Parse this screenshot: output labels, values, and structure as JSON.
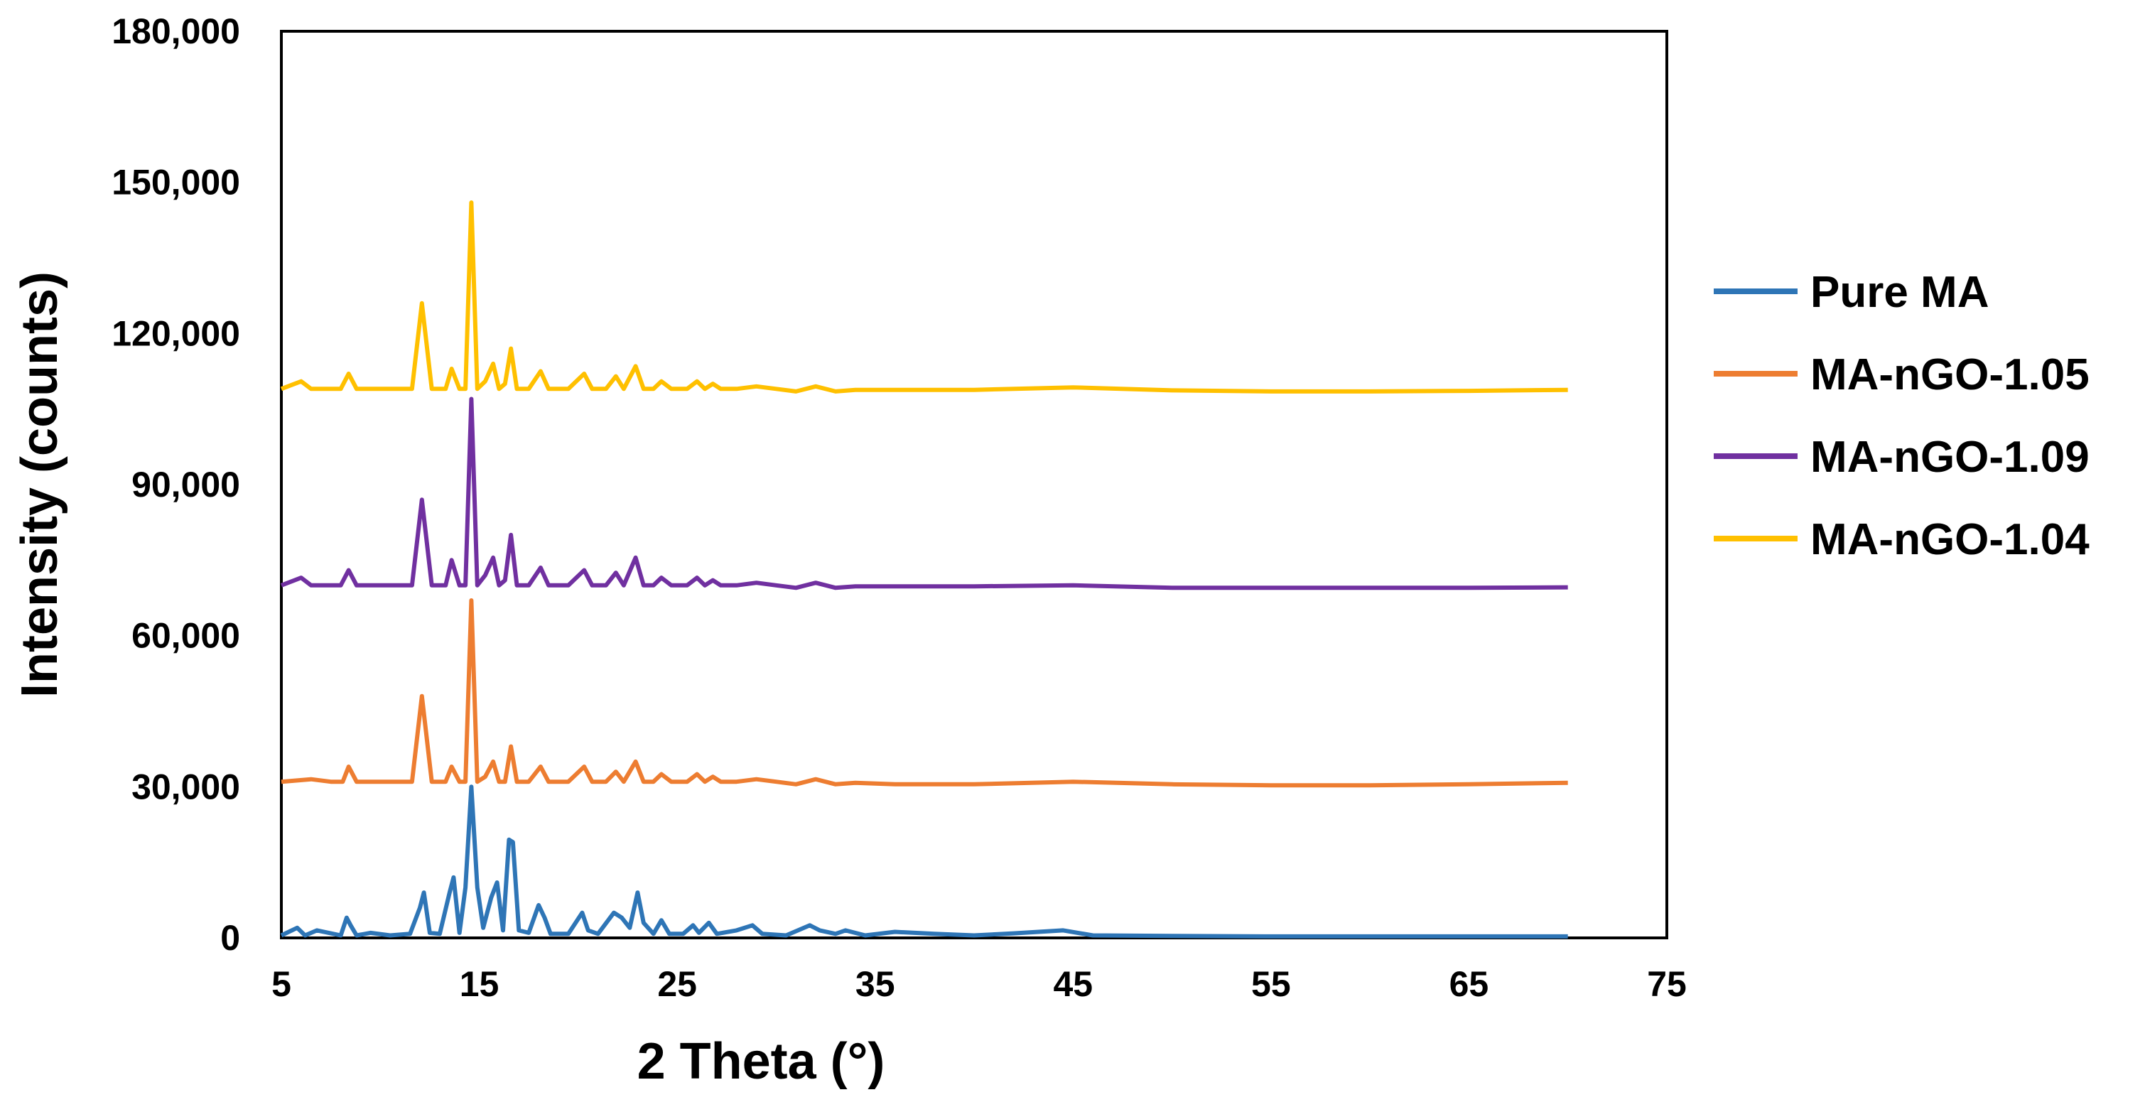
{
  "chart_data": {
    "type": "line",
    "title": "",
    "xlabel": "2 Theta (°)",
    "ylabel": "Intensity (counts)",
    "xlim": [
      5,
      75
    ],
    "ylim": [
      0,
      180000
    ],
    "x_ticks": [
      "5",
      "15",
      "25",
      "35",
      "45",
      "55",
      "65",
      "75"
    ],
    "y_ticks": [
      "0",
      "30,000",
      "60,000",
      "90,000",
      "120,000",
      "150,000",
      "180,000"
    ],
    "grid": false,
    "legend_position": "right",
    "series": [
      {
        "name": "Pure MA",
        "color": "#2E75B6",
        "x": [
          5,
          5.8,
          6.2,
          6.8,
          8.0,
          8.3,
          8.5,
          8.8,
          9.5,
          10.5,
          11.5,
          12.0,
          12.2,
          12.5,
          13.0,
          13.5,
          13.7,
          14.0,
          14.3,
          14.6,
          14.9,
          15.2,
          15.6,
          15.9,
          16.2,
          16.5,
          16.7,
          17.0,
          17.5,
          18.0,
          18.3,
          18.6,
          19.5,
          20.2,
          20.5,
          21.0,
          21.8,
          22.2,
          22.6,
          23.0,
          23.3,
          23.8,
          24.2,
          24.6,
          25.3,
          25.8,
          26.1,
          26.6,
          27.0,
          28.0,
          28.8,
          29.3,
          30.5,
          31.7,
          32.2,
          33.0,
          33.5,
          34.5,
          36.0,
          38.0,
          40.0,
          42.0,
          44.5,
          46.0,
          50.0,
          55.0,
          60.0,
          65.0,
          70.0
        ],
        "values": [
          500,
          2000,
          500,
          1500,
          500,
          4000,
          2500,
          500,
          1000,
          500,
          800,
          6000,
          9000,
          1000,
          800,
          9000,
          12000,
          1000,
          10000,
          30000,
          10000,
          2000,
          8000,
          11000,
          1500,
          19500,
          19000,
          1500,
          1000,
          6500,
          4000,
          800,
          800,
          5000,
          1500,
          800,
          5000,
          4000,
          2000,
          9000,
          3000,
          800,
          3500,
          800,
          800,
          2500,
          1000,
          3000,
          800,
          1500,
          2500,
          800,
          500,
          2500,
          1500,
          800,
          1500,
          500,
          1200,
          800,
          500,
          900,
          1500,
          500,
          400,
          300,
          300,
          300,
          300
        ]
      },
      {
        "name": "MA-nGO-1.05",
        "color": "#ED7D31",
        "x": [
          5,
          6.5,
          7.5,
          8.1,
          8.4,
          8.8,
          10.0,
          11.6,
          12.1,
          12.6,
          13.3,
          13.6,
          14.0,
          14.3,
          14.6,
          14.9,
          15.3,
          15.7,
          16.0,
          16.3,
          16.6,
          16.9,
          17.5,
          18.1,
          18.5,
          19.5,
          20.3,
          20.7,
          21.4,
          21.9,
          22.3,
          22.9,
          23.3,
          23.8,
          24.2,
          24.7,
          25.5,
          26.0,
          26.4,
          26.8,
          27.2,
          28.0,
          29.0,
          30.0,
          31.0,
          32.0,
          33.0,
          34.0,
          36.0,
          40.0,
          45.0,
          50.0,
          55.0,
          60.0,
          65.0,
          70.0
        ],
        "values": [
          31000,
          31500,
          31000,
          31000,
          34000,
          31000,
          31000,
          31000,
          48000,
          31000,
          31000,
          34000,
          31000,
          31000,
          67000,
          31000,
          32000,
          35000,
          31000,
          31000,
          38000,
          31000,
          31000,
          34000,
          31000,
          31000,
          34000,
          31000,
          31000,
          33000,
          31000,
          35000,
          31000,
          31000,
          32500,
          31000,
          31000,
          32500,
          31000,
          32000,
          31000,
          31000,
          31500,
          31000,
          30500,
          31500,
          30500,
          30800,
          30500,
          30500,
          31000,
          30500,
          30300,
          30300,
          30500,
          30800
        ]
      },
      {
        "name": "MA-nGO-1.09",
        "color": "#7030A0",
        "x": [
          5,
          6.0,
          6.5,
          8.0,
          8.4,
          8.8,
          10.0,
          11.6,
          12.1,
          12.6,
          13.3,
          13.6,
          14.0,
          14.3,
          14.6,
          14.9,
          15.3,
          15.7,
          16.0,
          16.3,
          16.6,
          16.9,
          17.5,
          18.1,
          18.5,
          19.5,
          20.3,
          20.7,
          21.4,
          21.9,
          22.3,
          22.9,
          23.3,
          23.8,
          24.2,
          24.7,
          25.5,
          26.0,
          26.4,
          26.8,
          27.2,
          28.0,
          29.0,
          30.0,
          31.0,
          32.0,
          33.0,
          34.0,
          36.0,
          40.0,
          45.0,
          50.0,
          55.0,
          60.0,
          65.0,
          70.0
        ],
        "values": [
          70000,
          71500,
          70000,
          70000,
          73000,
          70000,
          70000,
          70000,
          87000,
          70000,
          70000,
          75000,
          70000,
          70000,
          107000,
          70000,
          72000,
          75500,
          70000,
          71000,
          80000,
          70000,
          70000,
          73500,
          70000,
          70000,
          73000,
          70000,
          70000,
          72500,
          70000,
          75500,
          70000,
          70000,
          71500,
          70000,
          70000,
          71500,
          70000,
          71000,
          70000,
          70000,
          70500,
          70000,
          69500,
          70500,
          69500,
          69800,
          69800,
          69800,
          70000,
          69500,
          69500,
          69500,
          69500,
          69600
        ]
      },
      {
        "name": "MA-nGO-1.04",
        "color": "#FFC000",
        "x": [
          5,
          6.0,
          6.5,
          8.0,
          8.4,
          8.8,
          10.0,
          11.6,
          12.1,
          12.6,
          13.3,
          13.6,
          14.0,
          14.3,
          14.6,
          14.9,
          15.3,
          15.7,
          16.0,
          16.3,
          16.6,
          16.9,
          17.5,
          18.1,
          18.5,
          19.5,
          20.3,
          20.7,
          21.4,
          21.9,
          22.3,
          22.9,
          23.3,
          23.8,
          24.2,
          24.7,
          25.5,
          26.0,
          26.4,
          26.8,
          27.2,
          28.0,
          29.0,
          30.0,
          31.0,
          32.0,
          33.0,
          34.0,
          36.0,
          40.0,
          45.0,
          50.0,
          55.0,
          60.0,
          65.0,
          70.0
        ],
        "values": [
          109000,
          110500,
          109000,
          109000,
          112000,
          109000,
          109000,
          109000,
          126000,
          109000,
          109000,
          113000,
          109000,
          109000,
          146000,
          109000,
          110500,
          114000,
          109000,
          110000,
          117000,
          109000,
          109000,
          112500,
          109000,
          109000,
          112000,
          109000,
          109000,
          111500,
          109000,
          113500,
          109000,
          109000,
          110500,
          109000,
          109000,
          110500,
          109000,
          110000,
          109000,
          109000,
          109500,
          109000,
          108500,
          109500,
          108500,
          108800,
          108800,
          108800,
          109300,
          108700,
          108500,
          108500,
          108600,
          108800
        ]
      }
    ]
  }
}
